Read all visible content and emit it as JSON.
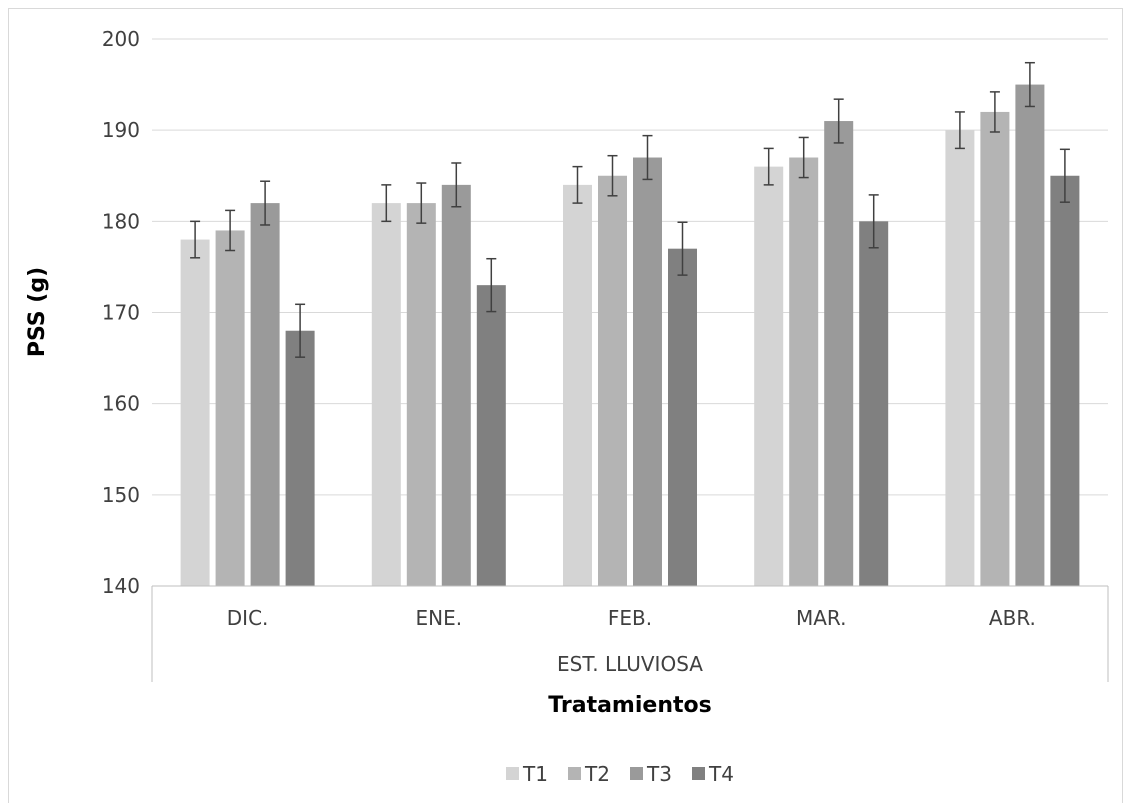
{
  "chart_data": {
    "type": "bar",
    "title": "",
    "xlabel": "Tratamientos",
    "ylabel": "PSS (g)",
    "group_label": "EST. LLUVIOSA",
    "categories": [
      "DIC.",
      "ENE.",
      "FEB.",
      "MAR.",
      "ABR."
    ],
    "ylim": [
      140,
      200
    ],
    "yticks": [
      140,
      150,
      160,
      170,
      180,
      190,
      200
    ],
    "grid": true,
    "legend_position": "bottom",
    "series": [
      {
        "name": "T1",
        "color": "#d4d4d4",
        "values": [
          178,
          182,
          184,
          186,
          190
        ],
        "errors": [
          2,
          2,
          2,
          2,
          2
        ]
      },
      {
        "name": "T2",
        "color": "#b4b4b4",
        "values": [
          179,
          182,
          185,
          187,
          192
        ],
        "errors": [
          2.2,
          2.2,
          2.2,
          2.2,
          2.2
        ]
      },
      {
        "name": "T3",
        "color": "#9a9a9a",
        "values": [
          182,
          184,
          187,
          191,
          195
        ],
        "errors": [
          2.4,
          2.4,
          2.4,
          2.4,
          2.4
        ]
      },
      {
        "name": "T4",
        "color": "#808080",
        "values": [
          168,
          173,
          177,
          180,
          185
        ],
        "errors": [
          2.9,
          2.9,
          2.9,
          2.9,
          2.9
        ]
      }
    ]
  }
}
